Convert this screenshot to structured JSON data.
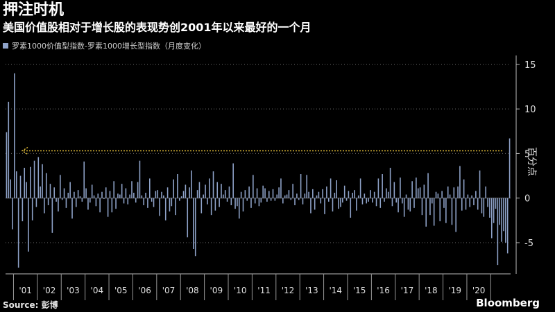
{
  "title": "押注时机",
  "subtitle": "美国价值股相对于增长股的表现势创2001年以来最好的一个月",
  "legend": "罗素1000价值型指数-罗素1000增长型指数（月度变化）",
  "source": "Source: 彭博",
  "brand": "Bloomberg",
  "colors": {
    "bar": "#8fa3c9",
    "reference_line": "#e8c23a",
    "grid": "#6e6e6e",
    "background": "#000000"
  },
  "chart_data": {
    "type": "bar",
    "title": "押注时机",
    "series": [
      {
        "name": "罗素1000价值型指数-罗素1000增长型指数（月度变化）",
        "values": [
          7.4,
          10.8,
          2.1,
          -3.5,
          14.0,
          3.0,
          -7.8,
          2.5,
          -2.6,
          3.4,
          1.8,
          -6.0,
          3.5,
          -2.5,
          4.2,
          -1.0,
          4.6,
          1.3,
          3.8,
          -1.7,
          2.8,
          -0.8,
          1.6,
          -3.9,
          1.2,
          -0.4,
          -1.5,
          2.6,
          -0.2,
          1.1,
          -1.1,
          0.6,
          1.8,
          -2.3,
          0.7,
          -1.0,
          0.9,
          0.2,
          -0.4,
          4.1,
          1.1,
          -1.3,
          -0.5,
          1.5,
          0.3,
          -0.9,
          0.5,
          -1.6,
          0.7,
          -0.1,
          1.2,
          -2.1,
          0.8,
          -1.6,
          1.9,
          -1.2,
          0.5,
          0.4,
          1.6,
          -0.6,
          1.1,
          -0.7,
          0.4,
          1.9,
          0.6,
          -0.5,
          1.8,
          4.2,
          0.3,
          -0.8,
          0.6,
          -1.1,
          2.2,
          -0.4,
          -1.0,
          0.8,
          0.9,
          -2.0,
          0.7,
          0.3,
          -2.5,
          1.2,
          -1.5,
          -0.9,
          2.1,
          -1.9,
          2.7,
          -0.3,
          0.2,
          0.8,
          1.5,
          -4.4,
          1.2,
          3.1,
          -5.7,
          -6.5,
          0.9,
          1.8,
          -1.7,
          0.4,
          1.5,
          -0.7,
          2.2,
          -1.9,
          3.0,
          -1.4,
          1.8,
          -1.0,
          1.6,
          0.4,
          0.9,
          -0.4,
          1.3,
          -0.8,
          3.9,
          -1.2,
          -0.9,
          -2.3,
          0.7,
          -1.5,
          0.9,
          -0.3,
          1.3,
          -1.1,
          2.6,
          -0.6,
          1.1,
          -0.9,
          -0.5,
          1.4,
          1.1,
          -0.4,
          0.8,
          -0.3,
          1.0,
          -0.3,
          0.4,
          1.2,
          2.2,
          -0.6,
          0.3,
          0.4,
          0.9,
          -0.2,
          1.6,
          -0.8,
          0.5,
          -0.2,
          2.7,
          -0.7,
          0.5,
          2.6,
          0.7,
          -1.7,
          1.0,
          -1.3,
          0.3,
          0.7,
          -0.6,
          1.0,
          -1.8,
          1.3,
          -0.4,
          2.2,
          -1.5,
          0.6,
          2.0,
          -1.2,
          -1.0,
          -0.5,
          1.4,
          -0.3,
          0.8,
          -2.2,
          0.6,
          0.9,
          -1.4,
          0.3,
          2.2,
          -0.7,
          0.5,
          -0.6,
          -0.4,
          0.9,
          -0.5,
          0.7,
          -0.9,
          2.2,
          -1.1,
          2.7,
          -0.4,
          1.1,
          0.7,
          3.4,
          -0.9,
          1.8,
          -0.5,
          -1.6,
          2.3,
          -0.6,
          -2.1,
          0.4,
          -1.3,
          -1.5,
          1.9,
          -1.1,
          2.3,
          1.1,
          1.2,
          -1.9,
          1.5,
          -3.2,
          2.8,
          -1.9,
          -0.6,
          -3.1,
          0.7,
          0.5,
          -2.6,
          0.8,
          -1.1,
          -2.8,
          1.3,
          0.4,
          -3.0,
          1.2,
          -3.8,
          1.3,
          3.6,
          -1.4,
          2.1,
          -1.3,
          0.4,
          -1.0,
          0.3,
          -0.8,
          0.8,
          -1.3,
          3.1,
          -1.7,
          -2.1,
          1.3,
          -1.0,
          -2.2,
          -4.5,
          -2.8,
          -1.2,
          -7.5,
          -3.0,
          -4.9,
          -3.7,
          -5.0,
          -6.2,
          6.7
        ]
      }
    ],
    "x_start": "2000-09",
    "ylim": [
      -8.5,
      16
    ],
    "yticks": [
      -5,
      0,
      5,
      10,
      15
    ],
    "ytick_labels": [
      "-5",
      "0",
      "5",
      "10",
      "15"
    ],
    "ylabel": "百分点",
    "reference_line": {
      "value": 5.3,
      "style": "dotted",
      "arrow": "left"
    },
    "x_tick_labels": [
      "'01",
      "'02",
      "'03",
      "'04",
      "'05",
      "'06",
      "'07",
      "'08",
      "'09",
      "'10",
      "'11",
      "'12",
      "'13",
      "'14",
      "'15",
      "'16",
      "'17",
      "'18",
      "'19",
      "'20"
    ],
    "grid": true,
    "legend_position": "top-left"
  }
}
